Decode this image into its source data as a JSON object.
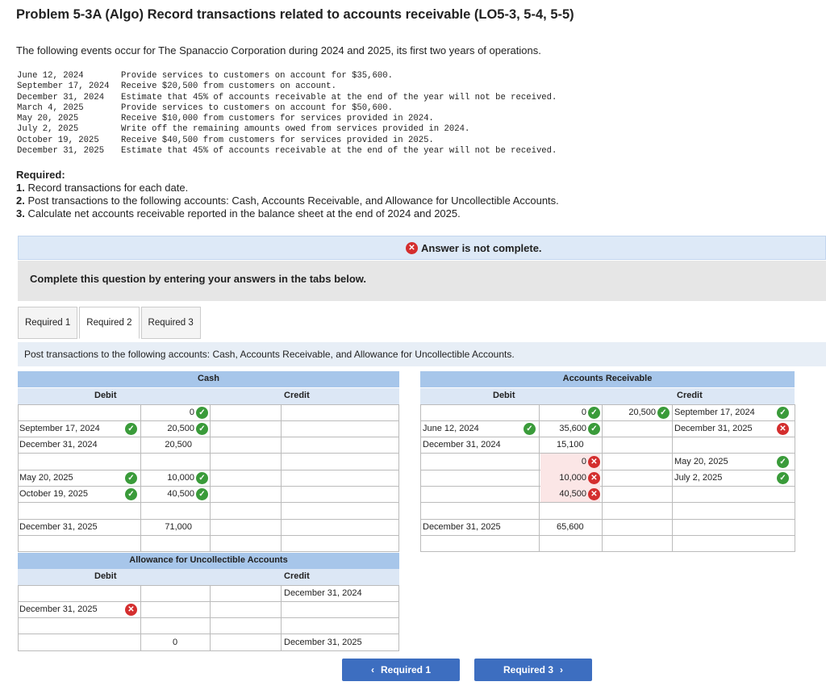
{
  "title": "Problem 5-3A (Algo) Record transactions related to accounts receivable (LO5-3, 5-4, 5-5)",
  "intro": "The following events occur for The Spanaccio Corporation during 2024 and 2025, its first two years of operations.",
  "events": [
    {
      "date": "June 12, 2024",
      "text": "Provide services to customers on account for $35,600."
    },
    {
      "date": "September 17, 2024",
      "text": "Receive $20,500 from customers on account."
    },
    {
      "date": "December 31, 2024",
      "text": "Estimate that 45% of accounts receivable at the end of the year will not be received."
    },
    {
      "date": "March 4, 2025",
      "text": "Provide services to customers on account for $50,600."
    },
    {
      "date": "May 20, 2025",
      "text": "Receive $10,000 from customers for services provided in 2024."
    },
    {
      "date": "July 2, 2025",
      "text": "Write off the remaining amounts owed from services provided in 2024."
    },
    {
      "date": "October 19, 2025",
      "text": "Receive $40,500 from customers for services provided in 2025."
    },
    {
      "date": "December 31, 2025",
      "text": "Estimate that 45% of accounts receivable at the end of the year will not be received."
    }
  ],
  "required_heading": "Required:",
  "required_items": [
    {
      "num": "1.",
      "text": "Record transactions for each date."
    },
    {
      "num": "2.",
      "text": "Post transactions to the following accounts: Cash, Accounts Receivable, and Allowance for Uncollectible Accounts."
    },
    {
      "num": "3.",
      "text": "Calculate net accounts receivable reported in the balance sheet at the end of 2024 and 2025."
    }
  ],
  "banner": "Answer is not complete.",
  "complete_msg": "Complete this question by entering your answers in the tabs below.",
  "tabs": [
    "Required 1",
    "Required 2",
    "Required 3"
  ],
  "instruction": "Post transactions to the following accounts: Cash, Accounts Receivable, and Allowance for Uncollectible Accounts.",
  "cash": {
    "title": "Cash",
    "debit": "Debit",
    "credit": "Credit",
    "rows": [
      {
        "date": "",
        "amount": "0",
        "status": "ok"
      },
      {
        "date": "September 17, 2024",
        "date_status": "ok",
        "amount": "20,500",
        "status": "ok"
      },
      {
        "date": "December 31, 2024",
        "amount": "20,500"
      },
      {
        "date": "May 20, 2025",
        "date_status": "ok",
        "amount": "10,000",
        "status": "ok"
      },
      {
        "date": "October 19, 2025",
        "date_status": "ok",
        "amount": "40,500",
        "status": "ok"
      },
      {
        "date": "December 31, 2025",
        "amount": "71,000"
      }
    ]
  },
  "ar": {
    "title": "Accounts Receivable",
    "debit": "Debit",
    "credit": "Credit",
    "debit_rows": [
      {
        "date": "",
        "amount": "0",
        "status": "ok"
      },
      {
        "date": "June 12, 2024",
        "date_status": "ok",
        "amount": "35,600",
        "status": "ok"
      },
      {
        "date": "December 31, 2024",
        "amount": "15,100"
      },
      {
        "date": "",
        "amount": "0",
        "status": "bad"
      },
      {
        "date": "",
        "amount": "10,000",
        "status": "bad"
      },
      {
        "date": "",
        "amount": "40,500",
        "status": "bad"
      },
      {
        "date": "December 31, 2025",
        "amount": "65,600"
      }
    ],
    "credit_rows": [
      {
        "amount": "20,500",
        "status": "ok",
        "date": "September 17, 2024",
        "date_status": "ok"
      },
      {
        "amount": "",
        "date": "December 31, 2025",
        "date_status": "bad"
      },
      {
        "amount": "",
        "date": "May 20, 2025",
        "date_status": "ok"
      },
      {
        "amount": "",
        "date": "July 2, 2025",
        "date_status": "ok"
      }
    ]
  },
  "allowance": {
    "title": "Allowance for Uncollectible Accounts",
    "debit": "Debit",
    "credit": "Credit",
    "credit_date_1": "December 31, 2024",
    "debit_date": "December 31, 2025",
    "amount": "0",
    "credit_date_2": "December 31, 2025"
  },
  "nav": {
    "prev": "Required 1",
    "next": "Required 3"
  }
}
